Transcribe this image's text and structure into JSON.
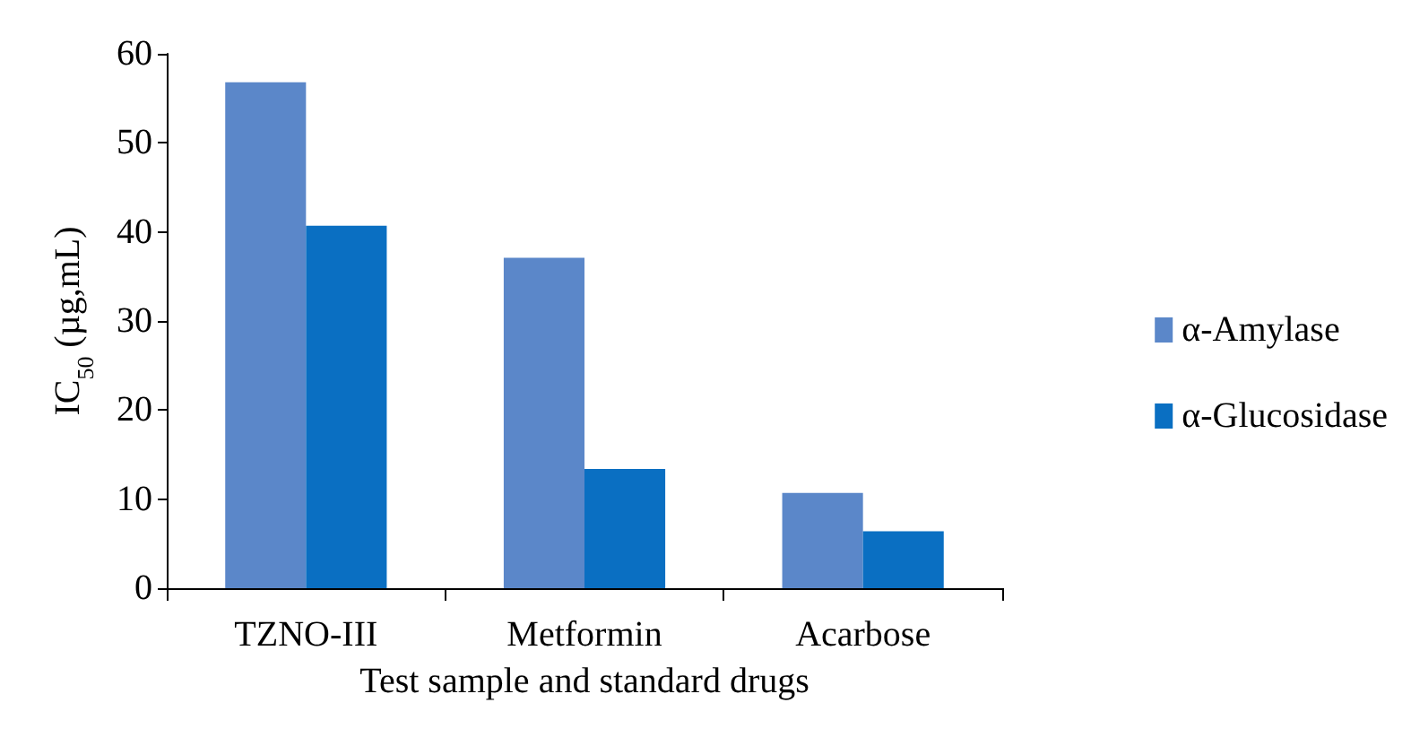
{
  "chart_data": {
    "type": "bar",
    "xlabel": "Test sample and standard drugs",
    "ylabel": "IC$_{50}$ (µg,mL)",
    "categories": [
      "TZNO-III",
      "Metformin",
      "Acarbose"
    ],
    "series": [
      {
        "name": "α-Amylase",
        "color": "#5b87c9",
        "values": [
          56.8,
          37.1,
          10.7
        ]
      },
      {
        "name": "α-Glucosidase",
        "color": "#0a6fc2",
        "values": [
          40.7,
          13.4,
          6.4
        ]
      }
    ],
    "ylim": [
      0,
      60
    ],
    "yticks": [
      0,
      10,
      20,
      30,
      40,
      50,
      60
    ],
    "grid": false,
    "legend": "right"
  }
}
